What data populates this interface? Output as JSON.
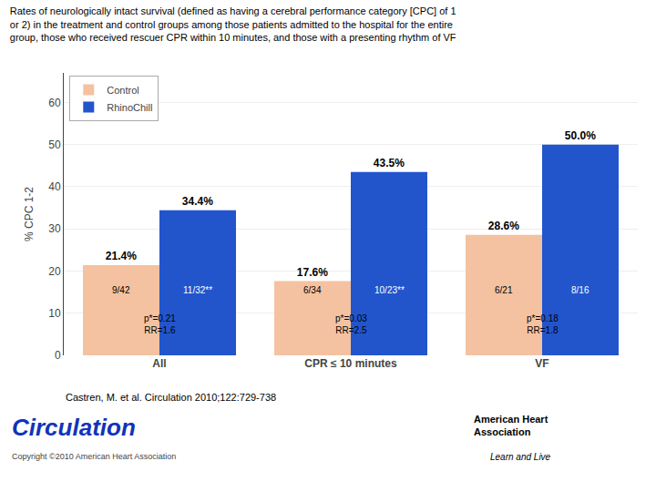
{
  "chart_data": {
    "type": "bar",
    "title": "Rates of neurologically intact survival (defined as having a cerebral performance category [CPC] of 1\nor 2) in the treatment and control groups among those patients admitted to the hospital for the entire\ngroup, those who received rescuer CPR within 10 minutes, and those with a presenting rhythm of VF",
    "categories": [
      "All",
      "CPR ≤ 10 minutes",
      "VF"
    ],
    "series": [
      {
        "name": "Control",
        "color": "#F4C2A0",
        "values": [
          21.4,
          17.6,
          28.6
        ],
        "value_labels": [
          "21.4%",
          "17.6%",
          "28.6%"
        ]
      },
      {
        "name": "RhinoChill",
        "color": "#2255CC",
        "values": [
          34.4,
          43.5,
          50.0
        ],
        "value_labels": [
          "34.4%",
          "43.5%",
          "50.0%"
        ]
      }
    ],
    "ylabel": "% CPC 1-2",
    "ylim": [
      0,
      67
    ],
    "yticks": [
      0,
      10,
      20,
      30,
      40,
      50,
      60
    ],
    "grid": true,
    "legend": "upper left",
    "data_labels": true,
    "annotations": [
      {
        "text": "9/42",
        "category": "All",
        "series": "Control"
      },
      {
        "text": "6/34",
        "category": "CPR ≤ 10 minutes",
        "series": "Control"
      },
      {
        "text": "6/21",
        "category": "VF",
        "series": "Control"
      },
      {
        "text": "11/32**",
        "category": "All",
        "series": "RhinoChill"
      },
      {
        "text": "10/23**",
        "category": "CPR ≤ 10 minutes",
        "series": "RhinoChill"
      },
      {
        "text": "8/16",
        "category": "VF",
        "series": "RhinoChill"
      },
      {
        "text": "p*=0.21\nRR=1.6",
        "category": "All"
      },
      {
        "text": "p*=0.03\nRR=2.5",
        "category": "CPR ≤ 10 minutes"
      },
      {
        "text": "p*=0.18\nRR=1.8",
        "category": "VF"
      },
      {
        "text": "Castren, M. et al. Circulation 2010;122:729-738"
      },
      {
        "text": "Circulation",
        "color": "#1133BB"
      },
      {
        "text": "Copyright ©2010 American Heart Association",
        "color": "#444444"
      },
      {
        "text": "American Heart\nAssociation"
      },
      {
        "text": "Learn and Live"
      }
    ]
  }
}
